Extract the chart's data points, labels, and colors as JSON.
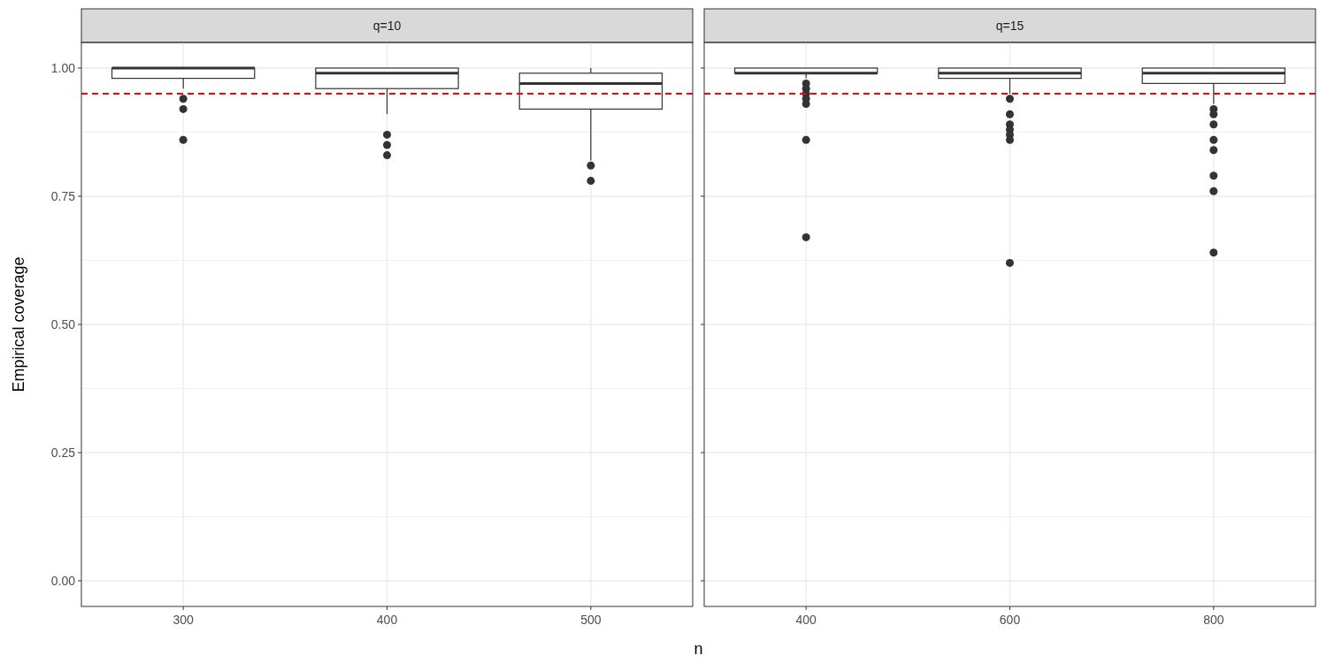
{
  "chart_data": [
    {
      "type": "box",
      "title": "q=10",
      "xlabel": "n",
      "ylabel": "Empirical coverage",
      "categories": [
        "300",
        "400",
        "500"
      ],
      "boxes": [
        {
          "low": 0.96,
          "q1": 0.98,
          "median": 1.0,
          "q3": 1.0,
          "high": 1.0,
          "outliers": [
            0.94,
            0.92,
            0.86
          ]
        },
        {
          "low": 0.91,
          "q1": 0.96,
          "median": 0.99,
          "q3": 1.0,
          "high": 1.0,
          "outliers": [
            0.87,
            0.85,
            0.83
          ]
        },
        {
          "low": 0.82,
          "q1": 0.92,
          "median": 0.97,
          "q3": 0.99,
          "high": 1.0,
          "outliers": [
            0.81,
            0.78
          ]
        }
      ],
      "ylim": [
        -0.05,
        1.05
      ],
      "yticks": [
        {
          "value": 0,
          "label": "0.00"
        },
        {
          "value": 0.25,
          "label": "0.25"
        },
        {
          "value": 0.5,
          "label": "0.50"
        },
        {
          "value": 0.75,
          "label": "0.75"
        },
        {
          "value": 1,
          "label": "1.00"
        }
      ],
      "grid": true,
      "ref_lines": [
        {
          "axis": "y",
          "value": 0.95,
          "color": "#ff0000",
          "line_style": "dashed"
        }
      ]
    },
    {
      "type": "box",
      "title": "q=15",
      "categories": [
        "400",
        "600",
        "800"
      ],
      "boxes": [
        {
          "low": 0.98,
          "q1": 0.99,
          "median": 0.99,
          "q3": 1.0,
          "high": 1.0,
          "outliers": [
            0.97,
            0.96,
            0.95,
            0.94,
            0.93,
            0.86,
            0.67
          ]
        },
        {
          "low": 0.95,
          "q1": 0.98,
          "median": 0.99,
          "q3": 1.0,
          "high": 1.0,
          "outliers": [
            0.94,
            0.91,
            0.89,
            0.88,
            0.87,
            0.86,
            0.62
          ]
        },
        {
          "low": 0.93,
          "q1": 0.97,
          "median": 0.99,
          "q3": 1.0,
          "high": 1.0,
          "outliers": [
            0.92,
            0.91,
            0.89,
            0.86,
            0.84,
            0.79,
            0.76,
            0.64
          ]
        }
      ],
      "ylim": [
        -0.05,
        1.05
      ],
      "yticks": [
        {
          "value": 0,
          "label": null
        },
        {
          "value": 0.25,
          "label": null
        },
        {
          "value": 0.5,
          "label": null
        },
        {
          "value": 0.75,
          "label": null
        },
        {
          "value": 1,
          "label": null
        }
      ],
      "grid": true,
      "tick_labels": "x",
      "ref_lines": [
        {
          "axis": "y",
          "value": 0.95,
          "color": "#ff0000",
          "line_style": "dashed"
        }
      ]
    }
  ]
}
